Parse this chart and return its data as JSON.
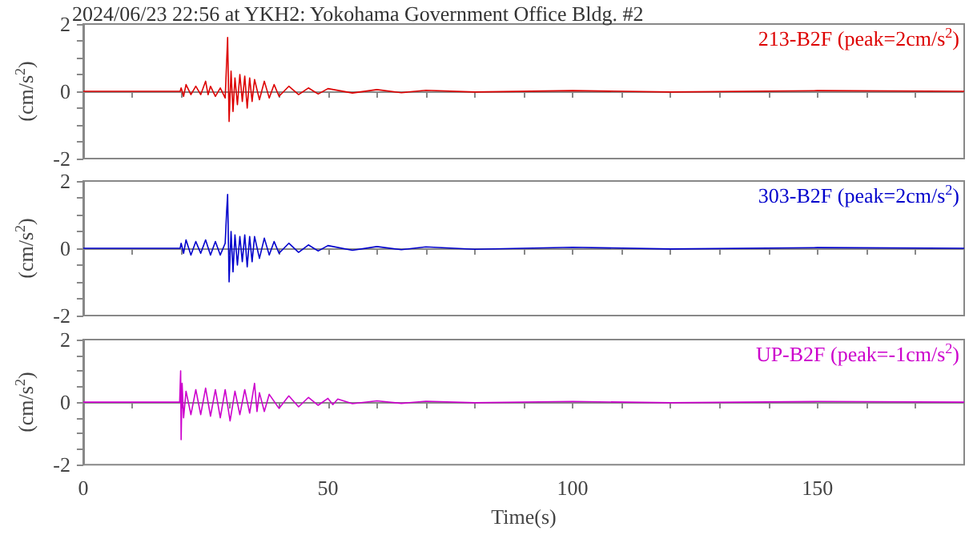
{
  "chart_data": [
    {
      "type": "line",
      "title": "2024/06/23 22:56 at YKH2: Yokohama Government Office Bldg. #2",
      "ylabel": "(cm/s$^{2}$)",
      "xlim": [
        0,
        180
      ],
      "ylim": [
        -2,
        2
      ],
      "tick_labels": "y",
      "xticks": [
        0,
        {
          "value": 10,
          "label": null
        },
        {
          "value": 20,
          "label": null
        },
        {
          "value": 30,
          "label": null
        },
        {
          "value": 40,
          "label": null
        },
        {
          "value": 50,
          "label": null
        },
        {
          "value": 60,
          "label": null
        },
        {
          "value": 70,
          "label": null
        },
        {
          "value": 80,
          "label": null
        },
        {
          "value": 90,
          "label": null
        },
        {
          "value": 100,
          "label": null
        },
        {
          "value": 110,
          "label": null
        },
        {
          "value": 120,
          "label": null
        },
        {
          "value": 130,
          "label": null
        },
        {
          "value": 140,
          "label": null
        },
        {
          "value": 150,
          "label": null
        },
        {
          "value": 160,
          "label": null
        },
        {
          "value": 170,
          "label": null
        }
      ],
      "yticks": [
        -2,
        {
          "value": -1.5,
          "label": null
        },
        {
          "value": -1,
          "label": null
        },
        {
          "value": -0.5,
          "label": null
        },
        0,
        {
          "value": 0.5,
          "label": null
        },
        {
          "value": 1,
          "label": null
        },
        {
          "value": 1.5,
          "label": null
        },
        2
      ],
      "series": [
        {
          "name": "213-B2F (peak=2cm/s$^{2}$)",
          "color": "#dd0000",
          "x": [
            0,
            19.8,
            20,
            20.5,
            21,
            22,
            23,
            24,
            25,
            25.5,
            26,
            27,
            28,
            29,
            29.5,
            29.8,
            30.2,
            30.6,
            31,
            31.5,
            32,
            32.5,
            33,
            33.5,
            34,
            34.5,
            35,
            36,
            37,
            38,
            39,
            40,
            42,
            44,
            46,
            48,
            50,
            55,
            60,
            65,
            70,
            80,
            100,
            120,
            150,
            180
          ],
          "values": [
            0,
            0,
            0.1,
            -0.15,
            0.2,
            -0.1,
            0.15,
            -0.1,
            0.3,
            -0.1,
            0.15,
            -0.15,
            0.1,
            -0.2,
            1.6,
            -0.9,
            0.6,
            -0.6,
            0.4,
            -0.4,
            0.5,
            -0.3,
            0.45,
            -0.5,
            0.4,
            -0.3,
            0.35,
            -0.25,
            0.3,
            -0.2,
            0.2,
            -0.15,
            0.15,
            -0.1,
            0.1,
            -0.08,
            0.08,
            -0.05,
            0.05,
            -0.04,
            0.03,
            -0.02,
            0.02,
            -0.02,
            0.02,
            0
          ]
        }
      ]
    },
    {
      "type": "line",
      "ylabel": "(cm/s$^{2}$)",
      "xlim": [
        0,
        180
      ],
      "ylim": [
        -2,
        2
      ],
      "tick_labels": "y",
      "xticks": [
        0,
        {
          "value": 10,
          "label": null
        },
        {
          "value": 20,
          "label": null
        },
        {
          "value": 30,
          "label": null
        },
        {
          "value": 40,
          "label": null
        },
        {
          "value": 50,
          "label": null
        },
        {
          "value": 60,
          "label": null
        },
        {
          "value": 70,
          "label": null
        },
        {
          "value": 80,
          "label": null
        },
        {
          "value": 90,
          "label": null
        },
        {
          "value": 100,
          "label": null
        },
        {
          "value": 110,
          "label": null
        },
        {
          "value": 120,
          "label": null
        },
        {
          "value": 130,
          "label": null
        },
        {
          "value": 140,
          "label": null
        },
        {
          "value": 150,
          "label": null
        },
        {
          "value": 160,
          "label": null
        },
        {
          "value": 170,
          "label": null
        }
      ],
      "yticks": [
        -2,
        {
          "value": -1.5,
          "label": null
        },
        {
          "value": -1,
          "label": null
        },
        {
          "value": -0.5,
          "label": null
        },
        0,
        {
          "value": 0.5,
          "label": null
        },
        {
          "value": 1,
          "label": null
        },
        {
          "value": 1.5,
          "label": null
        },
        2
      ],
      "series": [
        {
          "name": "303-B2F (peak=2cm/s$^{2}$)",
          "color": "#0000cc",
          "x": [
            0,
            19.8,
            20,
            20.5,
            21,
            22,
            23,
            24,
            25,
            26,
            27,
            28,
            29,
            29.3,
            29.5,
            29.8,
            30.2,
            30.6,
            31,
            31.5,
            32,
            32.5,
            33,
            33.5,
            34,
            34.5,
            35,
            36,
            37,
            38,
            39,
            40,
            42,
            44,
            46,
            48,
            50,
            55,
            60,
            65,
            70,
            80,
            100,
            120,
            150,
            180
          ],
          "values": [
            0,
            0,
            0.15,
            -0.15,
            0.25,
            -0.2,
            0.2,
            -0.15,
            0.25,
            -0.2,
            0.2,
            -0.2,
            0.15,
            1.1,
            1.6,
            -1.0,
            0.5,
            -0.7,
            0.4,
            -0.5,
            0.35,
            -0.4,
            0.4,
            -0.55,
            0.35,
            -0.4,
            0.35,
            -0.3,
            0.3,
            -0.2,
            0.2,
            -0.15,
            0.15,
            -0.12,
            0.1,
            -0.08,
            0.08,
            -0.06,
            0.05,
            -0.04,
            0.04,
            -0.03,
            0.03,
            -0.02,
            0.02,
            0
          ]
        }
      ]
    },
    {
      "type": "line",
      "ylabel": "(cm/s$^{2}$)",
      "xlabel": "Time(s)",
      "xlim": [
        0,
        180
      ],
      "ylim": [
        -2,
        2
      ],
      "xticks": [
        0,
        {
          "value": 10,
          "label": null
        },
        {
          "value": 20,
          "label": null
        },
        {
          "value": 30,
          "label": null
        },
        {
          "value": 40,
          "label": null
        },
        50,
        {
          "value": 60,
          "label": null
        },
        {
          "value": 70,
          "label": null
        },
        {
          "value": 80,
          "label": null
        },
        {
          "value": 90,
          "label": null
        },
        100,
        {
          "value": 110,
          "label": null
        },
        {
          "value": 120,
          "label": null
        },
        {
          "value": 130,
          "label": null
        },
        {
          "value": 140,
          "label": null
        },
        150,
        {
          "value": 160,
          "label": null
        },
        {
          "value": 170,
          "label": null
        }
      ],
      "yticks": [
        -2,
        {
          "value": -1.5,
          "label": null
        },
        {
          "value": -1,
          "label": null
        },
        {
          "value": -0.5,
          "label": null
        },
        0,
        {
          "value": 0.5,
          "label": null
        },
        {
          "value": 1,
          "label": null
        },
        {
          "value": 1.5,
          "label": null
        },
        2
      ],
      "series": [
        {
          "name": "UP-B2F (peak=-1cm/s$^{2}$)",
          "color": "#cc00cc",
          "x": [
            0,
            19.7,
            19.9,
            20,
            20.2,
            20.5,
            21,
            22,
            23,
            24,
            25,
            26,
            27,
            28,
            29,
            30,
            31,
            32,
            33,
            34,
            35,
            35.5,
            36,
            37,
            38,
            40,
            42,
            44,
            46,
            48,
            50,
            51,
            52,
            55,
            60,
            65,
            70,
            80,
            100,
            120,
            150,
            180
          ],
          "values": [
            0,
            0,
            1.0,
            -1.2,
            0.6,
            -0.5,
            0.35,
            -0.4,
            0.4,
            -0.4,
            0.45,
            -0.45,
            0.4,
            -0.5,
            0.4,
            -0.6,
            0.35,
            -0.4,
            0.4,
            -0.35,
            0.6,
            -0.3,
            0.3,
            -0.3,
            0.25,
            -0.2,
            0.2,
            -0.15,
            0.15,
            -0.1,
            0.12,
            -0.08,
            0.1,
            -0.05,
            0.04,
            -0.04,
            0.03,
            -0.02,
            0.02,
            -0.02,
            0.02,
            0
          ]
        }
      ]
    }
  ]
}
